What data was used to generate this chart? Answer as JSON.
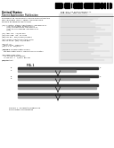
{
  "bg_color": "#f5f5f0",
  "page_bg": "#ffffff",
  "title_left": "United States",
  "title_pub": "Patent Application Publication",
  "barcode_color": "#000000",
  "text_color": "#333333",
  "dark": "#111111",
  "gray": "#888888",
  "lightgray": "#cccccc",
  "bar_dark": "#222222",
  "bar_gray": "#999999",
  "bar_light": "#cccccc"
}
